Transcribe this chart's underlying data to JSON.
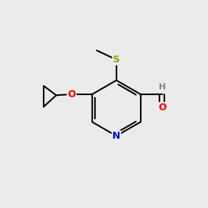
{
  "background_color": "#ebebeb",
  "atom_colors": {
    "C": "#000000",
    "N": "#0000cc",
    "O": "#ff0000",
    "S": "#999900",
    "H": "#808080"
  },
  "figsize": [
    3.0,
    3.0
  ],
  "dpi": 100
}
